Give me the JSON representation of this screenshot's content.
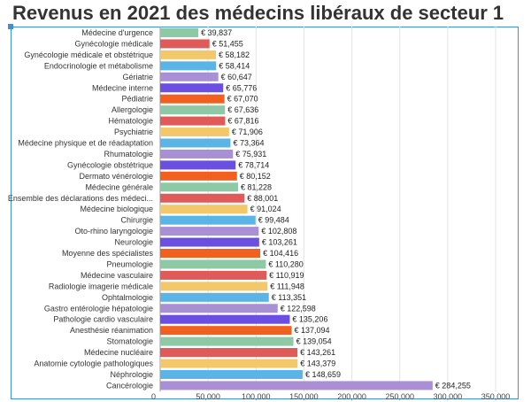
{
  "title": "Revenus en 2021 des médecins libéraux de secteur 1",
  "chart_data": {
    "type": "bar",
    "orientation": "horizontal",
    "title": "Revenus en 2021 des médecins libéraux de secteur 1",
    "value_prefix": "€ ",
    "xlim": [
      0,
      350000
    ],
    "x_ticks": [
      "0",
      "50,000",
      "100,000",
      "150,000",
      "200,000",
      "250,000",
      "300,000",
      "350,000"
    ],
    "grid": true,
    "categories": [
      "Médecine d'urgence",
      "Gynécologie médicale",
      "Gynécologie médicale et obstétrique",
      "Endocrinologie et métabolisme",
      "Gériatrie",
      "Médecine interne",
      "Pédiatrie",
      "Allergologie",
      "Hématologie",
      "Psychiatrie",
      "Médecine physique et de réadaptation",
      "Rhumatologie",
      "Gynécologie obstétrique",
      "Dermato vénérologie",
      "Médecine générale",
      "Ensemble des déclarations des médeci...",
      "Médecine biologique",
      "Chirurgie",
      "Oto-rhino laryngologie",
      "Neurologie",
      "Moyenne des spécialistes",
      "Pneumologie",
      "Médecine vasculaire",
      "Radiologie imagerie médicale",
      "Ophtalmologie",
      "Gastro entérologie hépatologie",
      "Pathologie cardio vasculaire",
      "Anesthésie réanimation",
      "Stomatologie",
      "Médecine nucléaire",
      "Anatomie cytologie pathologiques",
      "Néphrologie",
      "Cancérologie"
    ],
    "values": [
      39837,
      51455,
      58182,
      58414,
      60647,
      65776,
      67070,
      67636,
      67816,
      71906,
      73364,
      75931,
      78714,
      80152,
      81228,
      88001,
      91024,
      99484,
      102808,
      103261,
      104416,
      110280,
      110919,
      111948,
      113351,
      122598,
      135206,
      137094,
      139054,
      143261,
      143379,
      148659,
      284255
    ],
    "value_labels": [
      "39,837",
      "51,455",
      "58,182",
      "58,414",
      "60,647",
      "65,776",
      "67,070",
      "67,636",
      "67,816",
      "71,906",
      "73,364",
      "75,931",
      "78,714",
      "80,152",
      "81,228",
      "88,001",
      "91,024",
      "99,484",
      "102,808",
      "103,261",
      "104,416",
      "110,280",
      "110,919",
      "111,948",
      "113,351",
      "122,598",
      "135,206",
      "137,094",
      "139,054",
      "143,261",
      "143,379",
      "148,659",
      "284,255"
    ],
    "palette": [
      "#8dc9a5",
      "#e05a5a",
      "#f2c86b",
      "#5ab4e6",
      "#a98fd4",
      "#6a4fe0",
      "#f2601f"
    ]
  }
}
